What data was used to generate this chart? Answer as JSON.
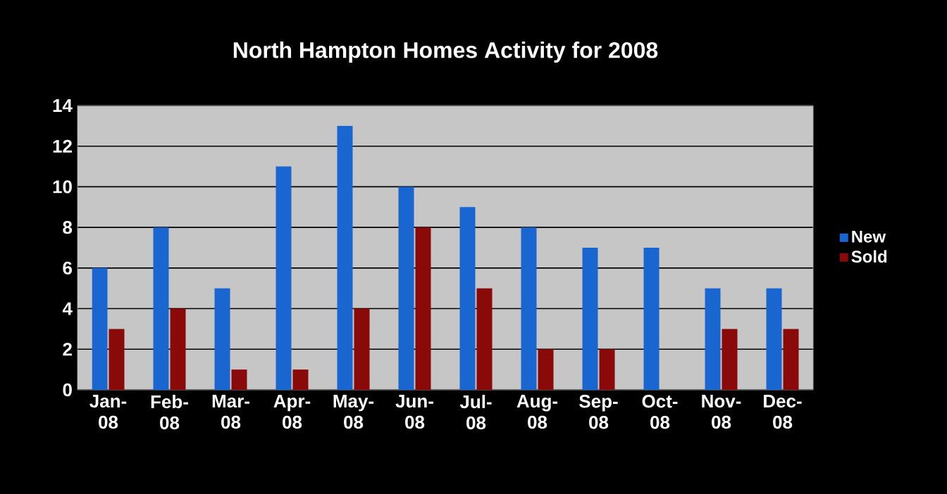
{
  "chart_data": {
    "type": "bar",
    "title": "North Hampton Homes Activity for 2008",
    "categories": [
      "Jan-08",
      "Feb-08",
      "Mar-08",
      "Apr-08",
      "May-08",
      "Jun-08",
      "Jul-08",
      "Aug-08",
      "Sep-08",
      "Oct-08",
      "Nov-08",
      "Dec-08"
    ],
    "series": [
      {
        "name": "New",
        "color": "#1a66d0",
        "values": [
          6,
          8,
          5,
          11,
          13,
          10,
          9,
          8,
          7,
          7,
          5,
          5
        ]
      },
      {
        "name": "Sold",
        "color": "#8a0a0a",
        "values": [
          3,
          4,
          1,
          1,
          4,
          8,
          5,
          2,
          2,
          0,
          3,
          3
        ]
      }
    ],
    "ylim": [
      0,
      14
    ],
    "yticks": [
      0,
      2,
      4,
      6,
      8,
      10,
      12,
      14
    ],
    "grid": "y",
    "legend": "right"
  }
}
